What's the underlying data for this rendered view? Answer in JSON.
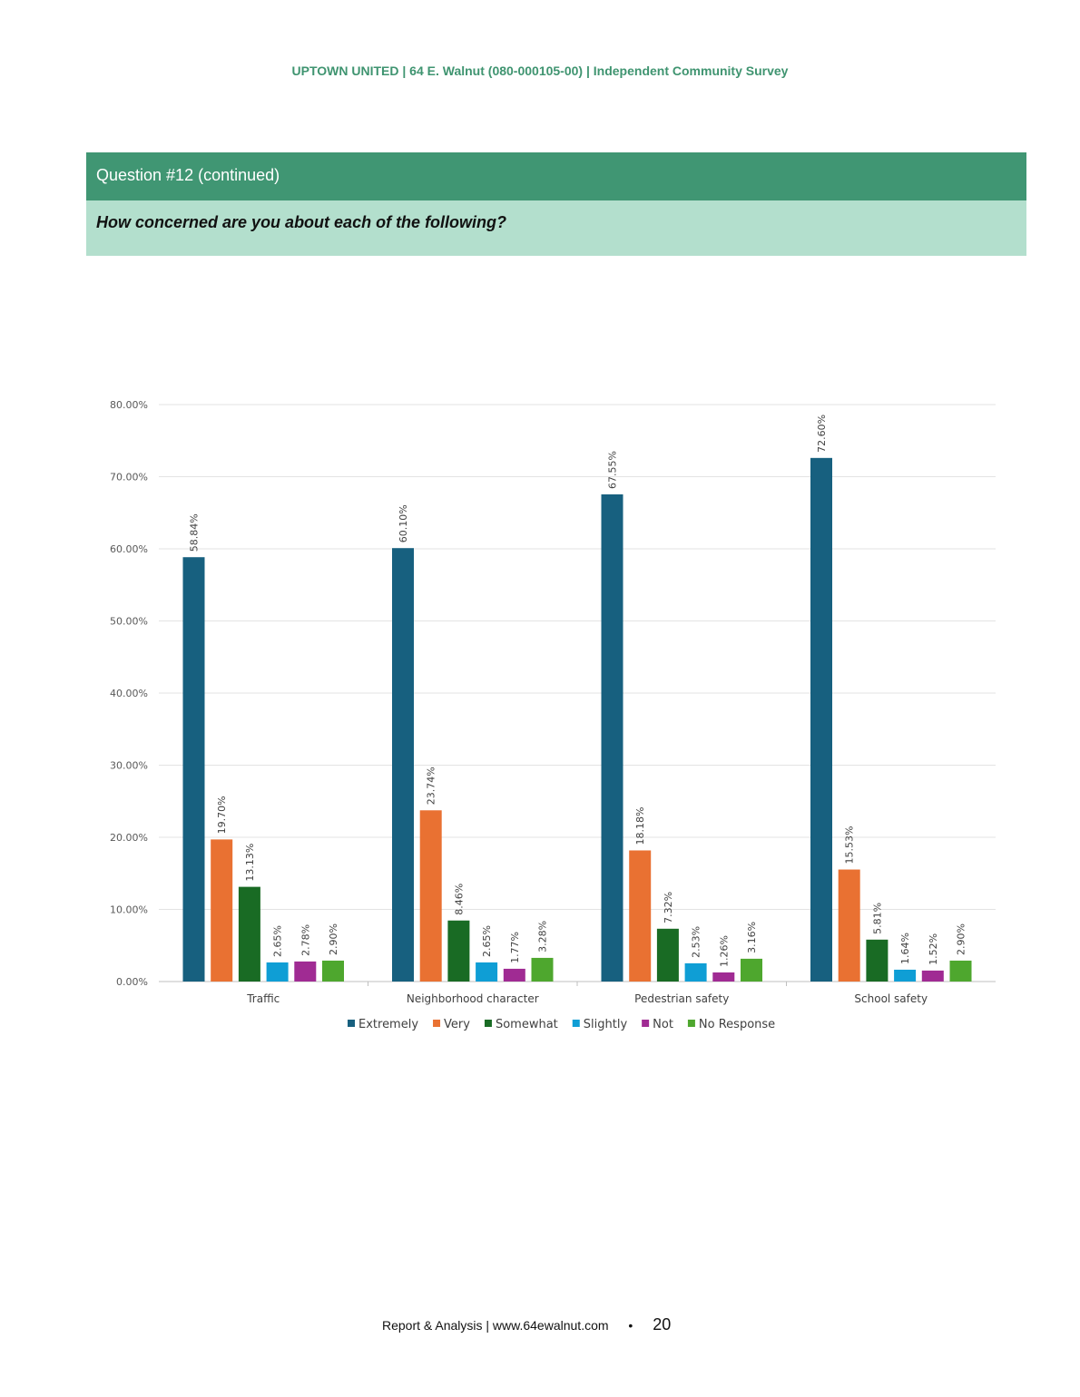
{
  "header": {
    "title": "UPTOWN UNITED | 64 E. Walnut (080-000105-00) | Independent Community Survey"
  },
  "question": {
    "number": "Question #12 (continued)",
    "text": "How concerned are you about each of the following?"
  },
  "chart_data": {
    "type": "bar",
    "categories": [
      "Traffic",
      "Neighborhood character",
      "Pedestrian safety",
      "School safety"
    ],
    "series": [
      {
        "name": "Extremely",
        "color": "#17607f",
        "values": [
          58.84,
          60.1,
          67.55,
          72.6
        ],
        "labels": [
          "58.84%",
          "60.10%",
          "67.55%",
          "72.60%"
        ]
      },
      {
        "name": "Very",
        "color": "#e97132",
        "values": [
          19.7,
          23.74,
          18.18,
          15.53
        ],
        "labels": [
          "19.70%",
          "23.74%",
          "18.18%",
          "15.53%"
        ]
      },
      {
        "name": "Somewhat",
        "color": "#196b24",
        "values": [
          13.13,
          8.46,
          7.32,
          5.81
        ],
        "labels": [
          "13.13%",
          "8.46%",
          "7.32%",
          "5.81%"
        ]
      },
      {
        "name": "Slightly",
        "color": "#0f9ed5",
        "values": [
          2.65,
          2.65,
          2.53,
          1.64
        ],
        "labels": [
          "2.65%",
          "2.65%",
          "2.53%",
          "1.64%"
        ]
      },
      {
        "name": "Not",
        "color": "#a02b93",
        "values": [
          2.78,
          1.77,
          1.26,
          1.52
        ],
        "labels": [
          "2.78%",
          "1.77%",
          "1.26%",
          "1.52%"
        ]
      },
      {
        "name": "No Response",
        "color": "#4ea72e",
        "values": [
          2.9,
          3.28,
          3.16,
          2.9
        ],
        "labels": [
          "2.90%",
          "3.28%",
          "3.16%",
          "2.90%"
        ]
      }
    ],
    "yticks": [
      "0.00%",
      "10.00%",
      "20.00%",
      "30.00%",
      "40.00%",
      "50.00%",
      "60.00%",
      "70.00%",
      "80.00%"
    ],
    "ylim": [
      0,
      80
    ],
    "grid": true,
    "legend": "bottom",
    "title": "",
    "xlabel": "",
    "ylabel": ""
  },
  "footer": {
    "text": "Report & Analysis | www.64ewalnut.com",
    "bullet": "•",
    "page": "20"
  }
}
